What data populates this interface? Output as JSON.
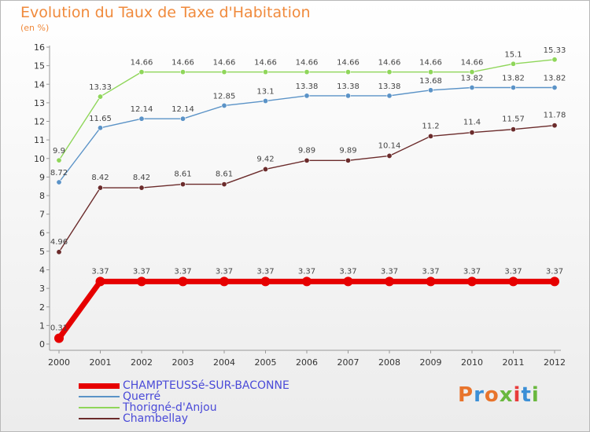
{
  "title": "Evolution du Taux de Taxe d'Habitation",
  "unit": "(en %)",
  "logo_text": "Proxiti",
  "chart_data": {
    "type": "line",
    "x": [
      "2000",
      "2001",
      "2002",
      "2003",
      "2004",
      "2005",
      "2006",
      "2007",
      "2008",
      "2009",
      "2010",
      "2011",
      "2012"
    ],
    "ylim": [
      0,
      16
    ],
    "yticks": [
      0,
      1,
      2,
      3,
      4,
      5,
      6,
      7,
      8,
      9,
      10,
      11,
      12,
      13,
      14,
      15,
      16
    ],
    "grid": false,
    "legend_placement": "bottom-left",
    "series": [
      {
        "name": "CHAMPTEUSSé-SUR-BACONNE",
        "color": "#e60000",
        "values": [
          0.31,
          3.37,
          3.37,
          3.37,
          3.37,
          3.37,
          3.37,
          3.37,
          3.37,
          3.37,
          3.37,
          3.37,
          3.37
        ],
        "labels": [
          "0.31",
          "3.37",
          "3.37",
          "3.37",
          "3.37",
          "3.37",
          "3.37",
          "3.37",
          "3.37",
          "3.37",
          "3.37",
          "3.37",
          "3.37"
        ]
      },
      {
        "name": "Querré",
        "color": "#5b93c7",
        "values": [
          8.72,
          11.65,
          12.14,
          12.14,
          12.85,
          13.1,
          13.38,
          13.38,
          13.38,
          13.68,
          13.82,
          13.82,
          13.82
        ],
        "labels": [
          "8.72",
          "11.65",
          "12.14",
          "12.14",
          "12.85",
          "13.1",
          "13.38",
          "13.38",
          "13.38",
          "13.68",
          "13.82",
          "13.82",
          "13.82"
        ]
      },
      {
        "name": "Thorigné-d'Anjou",
        "color": "#8fd65a",
        "values": [
          9.9,
          13.33,
          14.66,
          14.66,
          14.66,
          14.66,
          14.66,
          14.66,
          14.66,
          14.66,
          14.66,
          15.1,
          15.33
        ],
        "labels": [
          "9.9",
          "13.33",
          "14.66",
          "14.66",
          "14.66",
          "14.66",
          "14.66",
          "14.66",
          "14.66",
          "14.66",
          "14.66",
          "15.1",
          "15.33"
        ]
      },
      {
        "name": "Chambellay",
        "color": "#6b2b2b",
        "values": [
          4.96,
          8.42,
          8.42,
          8.61,
          8.61,
          9.42,
          9.89,
          9.89,
          10.14,
          11.2,
          11.4,
          11.57,
          11.78
        ],
        "labels": [
          "4.96",
          "8.42",
          "8.42",
          "8.61",
          "8.61",
          "9.42",
          "9.89",
          "9.89",
          "10.14",
          "11.2",
          "11.4",
          "11.57",
          "11.78"
        ]
      }
    ]
  }
}
